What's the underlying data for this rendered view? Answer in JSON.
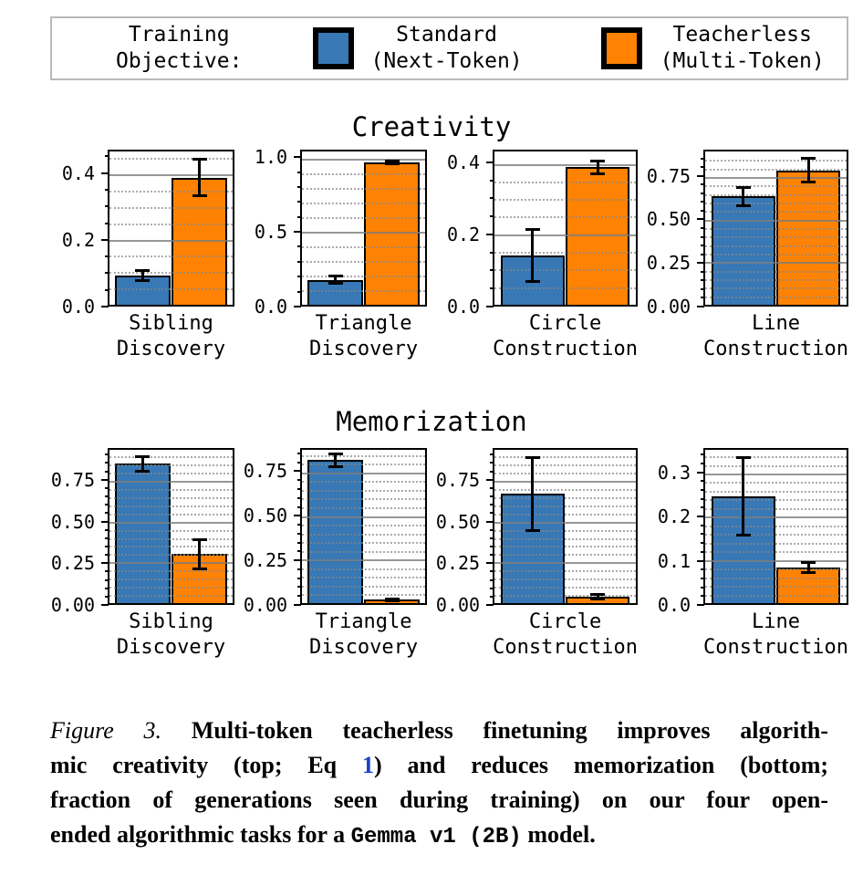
{
  "colors": {
    "standard_blue": "#3778b5",
    "teacherless_orange": "#ff8203",
    "bar_edge": "#000000",
    "grid_major": "#7d7d7d",
    "grid_minor": "#878787",
    "legend_border": "#b9b9b9",
    "link_blue": "#1a41c8"
  },
  "legend": {
    "title_lines": [
      "Training",
      "Objective:"
    ],
    "entries": [
      {
        "key": "standard",
        "color_key": "standard_blue",
        "label_lines": [
          "Standard",
          "(Next-Token)"
        ]
      },
      {
        "key": "teacherless",
        "color_key": "teacherless_orange",
        "label_lines": [
          "Teacherless",
          "(Multi-Token)"
        ]
      }
    ]
  },
  "chart_data": [
    {
      "type": "bar",
      "title": "Creativity",
      "grid": true,
      "legend_position": "top",
      "series_names": [
        "Standard (Next-Token)",
        "Teacherless (Multi-Token)"
      ],
      "categories": [
        "Sibling Discovery",
        "Triangle Discovery",
        "Circle Construction",
        "Line Construction"
      ],
      "panels": [
        {
          "category": "Sibling Discovery",
          "category_lines": [
            "Sibling",
            "Discovery"
          ],
          "ymax": 0.47,
          "minor_step": 0.05,
          "yticks": [
            {
              "v": 0.0,
              "label": "0.0"
            },
            {
              "v": 0.2,
              "label": "0.2"
            },
            {
              "v": 0.4,
              "label": "0.4"
            }
          ],
          "values": [
            0.09,
            0.39
          ],
          "errors": [
            0.016,
            0.055
          ]
        },
        {
          "category": "Triangle Discovery",
          "category_lines": [
            "Triangle",
            "Discovery"
          ],
          "ymax": 1.05,
          "minor_step": 0.1,
          "yticks": [
            {
              "v": 0.0,
              "label": "0.0"
            },
            {
              "v": 0.5,
              "label": "0.5"
            },
            {
              "v": 1.0,
              "label": "1.0"
            }
          ],
          "values": [
            0.17,
            0.975
          ],
          "errors": [
            0.025,
            0.008
          ]
        },
        {
          "category": "Circle Construction",
          "category_lines": [
            "Circle",
            "Construction"
          ],
          "ymax": 0.435,
          "minor_step": 0.05,
          "yticks": [
            {
              "v": 0.0,
              "label": "0.0"
            },
            {
              "v": 0.2,
              "label": "0.2"
            },
            {
              "v": 0.4,
              "label": "0.4"
            }
          ],
          "values": [
            0.14,
            0.39
          ],
          "errors": [
            0.073,
            0.019
          ]
        },
        {
          "category": "Line Construction",
          "category_lines": [
            "Line",
            "Construction"
          ],
          "ymax": 0.9,
          "minor_step": 0.05,
          "yticks": [
            {
              "v": 0.0,
              "label": "0.00"
            },
            {
              "v": 0.25,
              "label": "0.25"
            },
            {
              "v": 0.5,
              "label": "0.50"
            },
            {
              "v": 0.75,
              "label": "0.75"
            }
          ],
          "values": [
            0.635,
            0.79
          ],
          "errors": [
            0.055,
            0.07
          ]
        }
      ]
    },
    {
      "type": "bar",
      "title": "Memorization",
      "grid": true,
      "legend_position": "top",
      "series_names": [
        "Standard (Next-Token)",
        "Teacherless (Multi-Token)"
      ],
      "categories": [
        "Sibling Discovery",
        "Triangle Discovery",
        "Circle Construction",
        "Line Construction"
      ],
      "panels": [
        {
          "category": "Sibling Discovery",
          "category_lines": [
            "Sibling",
            "Discovery"
          ],
          "ymax": 0.94,
          "minor_step": 0.05,
          "yticks": [
            {
              "v": 0.0,
              "label": "0.00"
            },
            {
              "v": 0.25,
              "label": "0.25"
            },
            {
              "v": 0.5,
              "label": "0.50"
            },
            {
              "v": 0.75,
              "label": "0.75"
            }
          ],
          "values": [
            0.855,
            0.3
          ],
          "errors": [
            0.045,
            0.09
          ]
        },
        {
          "category": "Triangle Discovery",
          "category_lines": [
            "Triangle",
            "Discovery"
          ],
          "ymax": 0.88,
          "minor_step": 0.05,
          "yticks": [
            {
              "v": 0.0,
              "label": "0.00"
            },
            {
              "v": 0.25,
              "label": "0.25"
            },
            {
              "v": 0.5,
              "label": "0.50"
            },
            {
              "v": 0.75,
              "label": "0.75"
            }
          ],
          "values": [
            0.82,
            0.02
          ],
          "errors": [
            0.035,
            0.006
          ]
        },
        {
          "category": "Circle Construction",
          "category_lines": [
            "Circle",
            "Construction"
          ],
          "ymax": 0.94,
          "minor_step": 0.05,
          "yticks": [
            {
              "v": 0.0,
              "label": "0.00"
            },
            {
              "v": 0.25,
              "label": "0.25"
            },
            {
              "v": 0.5,
              "label": "0.50"
            },
            {
              "v": 0.75,
              "label": "0.75"
            }
          ],
          "values": [
            0.67,
            0.04
          ],
          "errors": [
            0.225,
            0.012
          ]
        },
        {
          "category": "Line Construction",
          "category_lines": [
            "Line",
            "Construction"
          ],
          "ymax": 0.355,
          "minor_step": 0.02,
          "yticks": [
            {
              "v": 0.0,
              "label": "0.0"
            },
            {
              "v": 0.1,
              "label": "0.1"
            },
            {
              "v": 0.2,
              "label": "0.2"
            },
            {
              "v": 0.3,
              "label": "0.3"
            }
          ],
          "values": [
            0.248,
            0.083
          ],
          "errors": [
            0.09,
            0.012
          ]
        }
      ]
    }
  ],
  "caption": {
    "lines": [
      [
        {
          "text": "Figure 3.",
          "style": "fig-label"
        },
        {
          "text": " Multi-token teacherless finetuning improves algorith-",
          "style": "bold"
        }
      ],
      [
        {
          "text": "mic creativity (top; Eq ",
          "style": "bold"
        },
        {
          "text": "1",
          "style": "link"
        },
        {
          "text": ") and reduces memorization (bottom;",
          "style": "bold"
        }
      ],
      [
        {
          "text": "fraction of generations seen during training) on our four open-",
          "style": "bold"
        }
      ],
      [
        {
          "text": "ended algorithmic tasks for a ",
          "style": "bold"
        },
        {
          "text": "Gemma v1 (2B)",
          "style": "mono"
        },
        {
          "text": " model.",
          "style": "bold"
        }
      ]
    ]
  }
}
